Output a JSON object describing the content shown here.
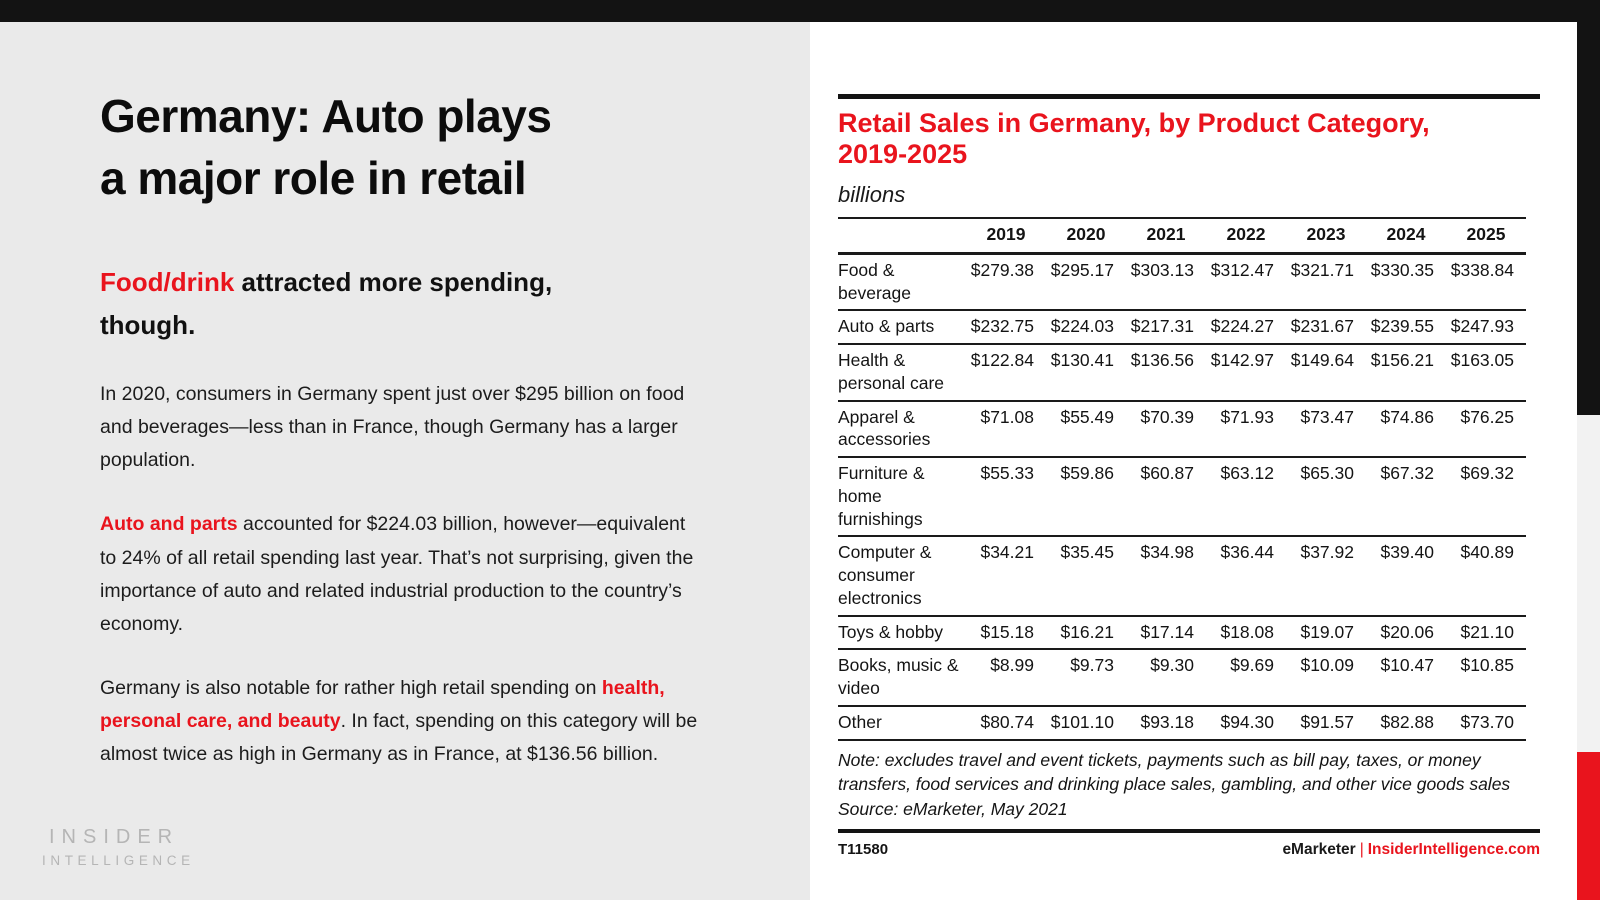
{
  "colors": {
    "accent_red": "#e9141d",
    "bar_black": "#131313",
    "left_bg": "#eaeaea",
    "panel_bg": "#ffffff",
    "strip_gray": "#f2f2f2",
    "text": "#1a1a1a",
    "logo_gray": "#b5b5b5"
  },
  "left_panel": {
    "title_lines": [
      "Germany: Auto plays",
      "a major role in retail"
    ],
    "subhead_segments": [
      {
        "text": "Food/drink",
        "accent": true,
        "bold": true
      },
      {
        "text": " attracted more spending, though.",
        "accent": false,
        "bold": true
      }
    ],
    "paragraphs": [
      [
        {
          "text": "In 2020, consumers in Germany spent just over $295 billion on food and beverages—less than in France, though Germany has a larger population.",
          "accent": false,
          "bold": false
        }
      ],
      [
        {
          "text": "Auto and parts",
          "accent": true,
          "bold": true
        },
        {
          "text": " accounted for $224.03 billion, however—equivalent to 24% of all retail spending last year. That’s not surprising, given the importance of auto and related industrial production to the country’s economy.",
          "accent": false,
          "bold": false
        }
      ],
      [
        {
          "text": "Germany is also notable for rather high retail spending on ",
          "accent": false,
          "bold": false
        },
        {
          "text": "health, personal care, and beauty",
          "accent": true,
          "bold": true
        },
        {
          "text": ". In fact, spending on this category will be almost twice as high in Germany as in France, at $136.56 billion.",
          "accent": false,
          "bold": false
        }
      ]
    ],
    "logo_line1": "INSIDER",
    "logo_line2": "INTELLIGENCE"
  },
  "chart_panel": {
    "title_lines": [
      "Retail Sales in Germany, by Product Category,",
      "2019-2025"
    ],
    "unit_label": "billions",
    "note": "Note: excludes travel and event tickets, payments such as bill pay, taxes, or money transfers, food services and drinking place sales, gambling, and other vice goods sales",
    "source": "Source: eMarketer, May 2021",
    "chart_id": "T11580",
    "brand_left": "eMarketer",
    "brand_divider": "|",
    "brand_right": "InsiderIntelligence.com"
  },
  "chart_data": {
    "type": "table",
    "title": "Retail Sales in Germany, by Product Category, 2019-2025",
    "unit": "billions",
    "columns": [
      "2019",
      "2020",
      "2021",
      "2022",
      "2023",
      "2024",
      "2025"
    ],
    "rows": [
      {
        "category": "Food & beverage",
        "values": [
          "$279.38",
          "$295.17",
          "$303.13",
          "$312.47",
          "$321.71",
          "$330.35",
          "$338.84"
        ]
      },
      {
        "category": "Auto & parts",
        "values": [
          "$232.75",
          "$224.03",
          "$217.31",
          "$224.27",
          "$231.67",
          "$239.55",
          "$247.93"
        ]
      },
      {
        "category": "Health & personal care",
        "values": [
          "$122.84",
          "$130.41",
          "$136.56",
          "$142.97",
          "$149.64",
          "$156.21",
          "$163.05"
        ]
      },
      {
        "category": "Apparel & accessories",
        "values": [
          "$71.08",
          "$55.49",
          "$70.39",
          "$71.93",
          "$73.47",
          "$74.86",
          "$76.25"
        ]
      },
      {
        "category": "Furniture & home furnishings",
        "values": [
          "$55.33",
          "$59.86",
          "$60.87",
          "$63.12",
          "$65.30",
          "$67.32",
          "$69.32"
        ]
      },
      {
        "category": "Computer & consumer electronics",
        "values": [
          "$34.21",
          "$35.45",
          "$34.98",
          "$36.44",
          "$37.92",
          "$39.40",
          "$40.89"
        ]
      },
      {
        "category": "Toys & hobby",
        "values": [
          "$15.18",
          "$16.21",
          "$17.14",
          "$18.08",
          "$19.07",
          "$20.06",
          "$21.10"
        ]
      },
      {
        "category": "Books, music & video",
        "values": [
          "$8.99",
          "$9.73",
          "$9.30",
          "$9.69",
          "$10.09",
          "$10.47",
          "$10.85"
        ]
      },
      {
        "category": "Other",
        "values": [
          "$80.74",
          "$101.10",
          "$93.18",
          "$94.30",
          "$91.57",
          "$82.88",
          "$73.70"
        ]
      }
    ]
  }
}
